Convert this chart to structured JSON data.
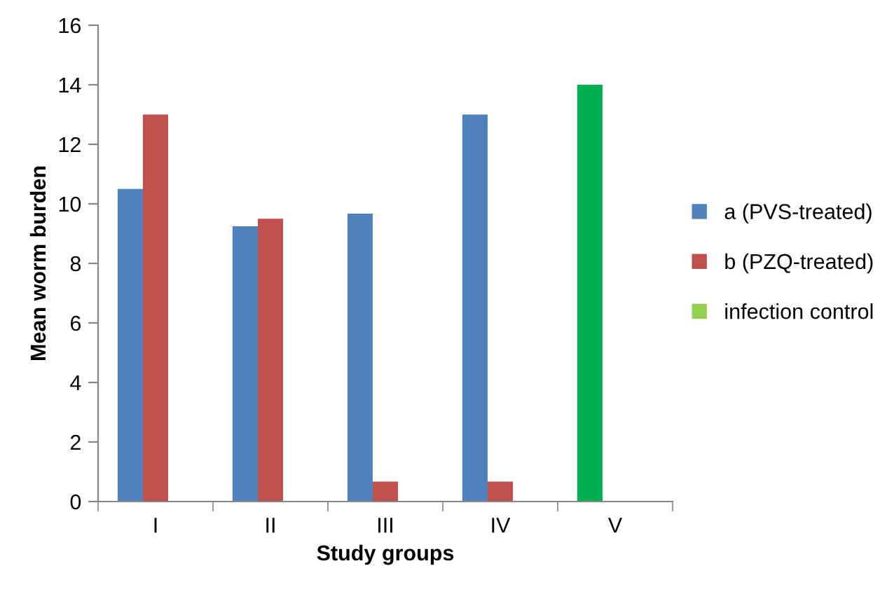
{
  "chart_data": {
    "type": "bar",
    "xlabel": "Study groups",
    "ylabel": "Mean worm burden",
    "categories": [
      "I",
      "II",
      "III",
      "IV",
      "V"
    ],
    "series": [
      {
        "name": "a (PVS-treated)",
        "color": "#4f81bd",
        "colors": [
          "#4f81bd",
          "#4f81bd",
          "#4f81bd",
          "#4f81bd",
          "#00b050"
        ],
        "values": [
          10.5,
          9.25,
          9.67,
          13,
          14
        ]
      },
      {
        "name": "b (PZQ-treated)",
        "color": "#c0504d",
        "values": [
          13,
          9.5,
          0.67,
          0.67,
          null
        ]
      },
      {
        "name": "infection control",
        "color": "#92d050",
        "values": [
          null,
          null,
          null,
          null,
          null
        ]
      }
    ],
    "ylim": [
      0,
      16
    ],
    "yticks": [
      0,
      2,
      4,
      6,
      8,
      10,
      12,
      14,
      16
    ],
    "grid": false,
    "legend": "right"
  }
}
